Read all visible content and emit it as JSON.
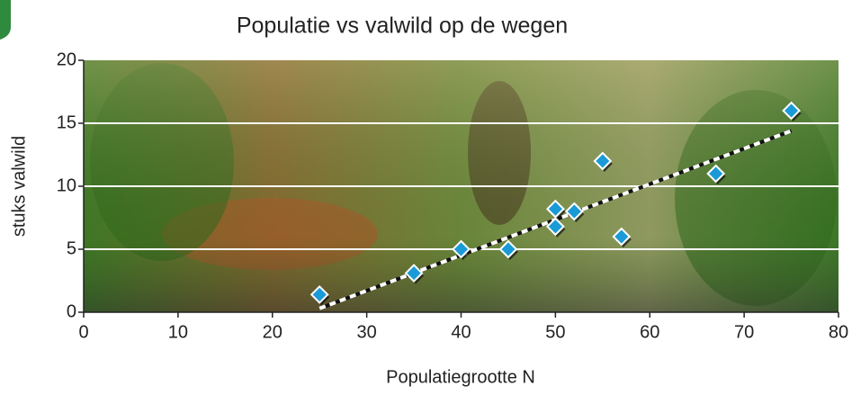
{
  "chart_data": {
    "type": "scatter",
    "title": "Populatie vs valwild op de wegen",
    "x_label": "Populatiegrootte N",
    "y_label": "stuks valwild",
    "series": [
      {
        "color": "#1a9ad6",
        "x": [
          25,
          35,
          40,
          45,
          50,
          50,
          52,
          55,
          57,
          67,
          75
        ],
        "values": [
          1.4,
          3.1,
          5,
          5,
          8.2,
          6.8,
          8,
          12,
          6,
          11,
          16
        ]
      }
    ],
    "trendline": {
      "x": [
        25,
        75
      ],
      "values": [
        0.3,
        14.4
      ]
    },
    "xlim": [
      0,
      80
    ],
    "xticks": [
      0,
      10,
      20,
      30,
      40,
      50,
      60,
      70,
      80
    ],
    "ylim": [
      0,
      20
    ],
    "yticks": [
      0,
      5,
      10,
      15,
      20
    ],
    "grid": true
  }
}
